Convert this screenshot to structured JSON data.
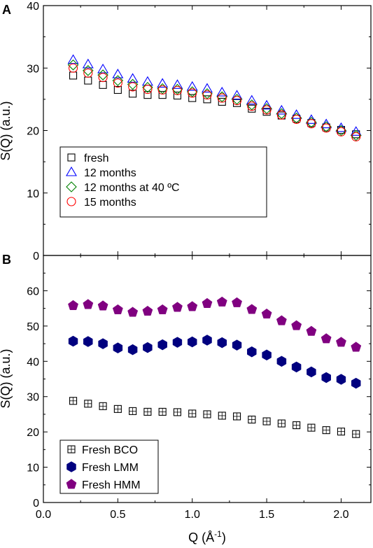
{
  "chart_data": [
    {
      "panel": "A",
      "type": "scatter",
      "xlabel": "",
      "ylabel": "S(Q) (a.u.)",
      "xlim": [
        0,
        2.2
      ],
      "ylim": [
        0,
        40
      ],
      "xticks": [
        0.0,
        0.5,
        1.0,
        1.5,
        2.0
      ],
      "yticks": [
        0,
        10,
        20,
        30,
        40
      ],
      "show_x_tick_labels": false,
      "grid": false,
      "legend": "lower-left",
      "x": [
        0.2,
        0.3,
        0.4,
        0.5,
        0.6,
        0.7,
        0.8,
        0.9,
        1.0,
        1.1,
        1.2,
        1.3,
        1.4,
        1.5,
        1.6,
        1.7,
        1.8,
        1.9,
        2.0,
        2.1
      ],
      "series": [
        {
          "name": "fresh",
          "marker": "square",
          "color": "#000000",
          "values": [
            28.8,
            28.0,
            27.3,
            26.5,
            25.9,
            25.7,
            25.7,
            25.6,
            25.2,
            25.0,
            24.6,
            24.4,
            23.5,
            23.0,
            22.4,
            21.9,
            21.2,
            20.5,
            20.1,
            19.4
          ]
        },
        {
          "name": "12 months",
          "marker": "triangle",
          "color": "#0000ff",
          "values": [
            31.3,
            30.6,
            29.8,
            29.0,
            28.3,
            27.8,
            27.5,
            27.3,
            27.0,
            26.7,
            26.1,
            25.6,
            24.8,
            24.0,
            23.2,
            22.5,
            21.7,
            21.0,
            20.4,
            19.8
          ]
        },
        {
          "name": "12 months at 40 ºC",
          "marker": "diamond",
          "color": "#008000",
          "values": [
            30.5,
            29.6,
            28.9,
            28.0,
            27.4,
            26.9,
            26.7,
            26.6,
            26.2,
            25.9,
            25.4,
            25.0,
            24.1,
            23.5,
            22.7,
            22.0,
            21.3,
            20.6,
            20.0,
            19.2
          ]
        },
        {
          "name": "15 months",
          "marker": "circle",
          "color": "#ff0000",
          "values": [
            30.0,
            29.2,
            28.5,
            27.6,
            27.0,
            26.6,
            26.5,
            26.4,
            26.0,
            25.7,
            25.2,
            24.8,
            23.9,
            23.3,
            22.5,
            21.8,
            21.1,
            20.4,
            19.8,
            19.0
          ]
        }
      ]
    },
    {
      "panel": "B",
      "type": "scatter",
      "xlabel": "Q (Å⁻¹)",
      "ylabel": "S(Q) (a.u.)",
      "xlim": [
        0,
        2.2
      ],
      "ylim": [
        0,
        70
      ],
      "xticks": [
        0.0,
        0.5,
        1.0,
        1.5,
        2.0
      ],
      "yticks": [
        0,
        10,
        20,
        30,
        40,
        50,
        60
      ],
      "show_x_tick_labels": true,
      "grid": false,
      "legend": "lower-left",
      "x": [
        0.2,
        0.3,
        0.4,
        0.5,
        0.6,
        0.7,
        0.8,
        0.9,
        1.0,
        1.1,
        1.2,
        1.3,
        1.4,
        1.5,
        1.6,
        1.7,
        1.8,
        1.9,
        2.0,
        2.1
      ],
      "series": [
        {
          "name": "Fresh BCO",
          "marker": "square-cross",
          "color": "#000000",
          "values": [
            28.8,
            28.0,
            27.3,
            26.5,
            25.9,
            25.7,
            25.7,
            25.6,
            25.2,
            25.0,
            24.6,
            24.4,
            23.5,
            23.0,
            22.4,
            21.9,
            21.2,
            20.5,
            20.1,
            19.4
          ]
        },
        {
          "name": "Fresh LMM",
          "marker": "hexagon",
          "color": "#00007f",
          "values": [
            45.7,
            45.6,
            45.0,
            43.8,
            43.3,
            43.9,
            44.7,
            45.4,
            45.5,
            46.0,
            45.3,
            44.6,
            42.7,
            41.8,
            40.0,
            38.4,
            37.0,
            35.4,
            34.9,
            33.8
          ]
        },
        {
          "name": "Fresh HMM",
          "marker": "pentagon",
          "color": "#800080",
          "values": [
            55.8,
            56.1,
            55.7,
            54.6,
            53.9,
            54.2,
            54.6,
            55.3,
            55.5,
            56.4,
            56.8,
            56.6,
            54.7,
            53.4,
            51.5,
            50.1,
            48.5,
            46.4,
            45.4,
            44.0
          ]
        }
      ]
    }
  ],
  "panels": {
    "a": {
      "label": "A",
      "ylabel": "S(Q) (a.u.)"
    },
    "b": {
      "label": "B",
      "ylabel": "S(Q) (a.u.)",
      "xlabel_main": "Q (Å",
      "xlabel_sup": "-1",
      "xlabel_end": ")"
    }
  }
}
